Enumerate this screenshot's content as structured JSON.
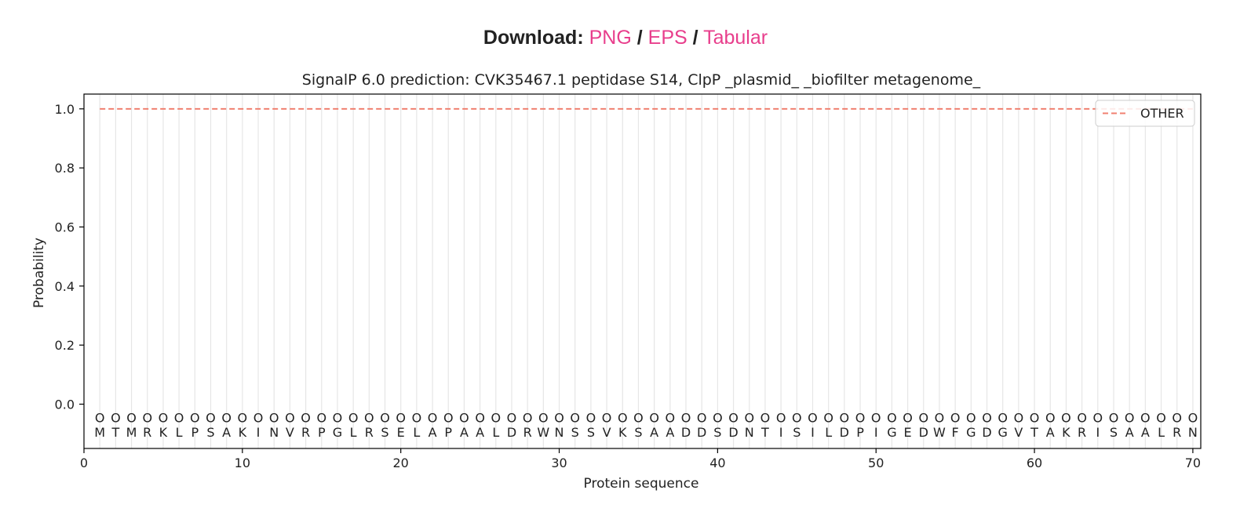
{
  "download": {
    "label": "Download:",
    "separator": "/",
    "links": [
      "PNG",
      "EPS",
      "Tabular"
    ]
  },
  "colors": {
    "link": "#e83e8c",
    "other_line": "#f08070",
    "grid": "#e6e6e6",
    "marker": "#888888"
  },
  "chart_data": {
    "type": "line",
    "title": "SignalP 6.0 prediction: CVK35467.1 peptidase S14, ClpP _plasmid_ _biofilter metagenome_",
    "xlabel": "Protein sequence",
    "ylabel": "Probability",
    "xlim": [
      0,
      70.5
    ],
    "ylim": [
      -0.15,
      1.05
    ],
    "xticks": [
      0,
      10,
      20,
      30,
      40,
      50,
      60,
      70
    ],
    "yticks": [
      0.0,
      0.2,
      0.4,
      0.6,
      0.8,
      1.0
    ],
    "ytick_labels": [
      "0.0",
      "0.2",
      "0.4",
      "0.6",
      "0.8",
      "1.0"
    ],
    "grid": "vertical at each residue",
    "legend": {
      "placement": "top-right",
      "entries": [
        "OTHER"
      ]
    },
    "series": [
      {
        "name": "OTHER",
        "style": "dashed",
        "x_start": 1,
        "x_end": 70,
        "value": 1.0
      }
    ],
    "residue_marker_y": -0.045,
    "residue_marker_label": "O",
    "sequence": [
      "M",
      "T",
      "M",
      "R",
      "K",
      "L",
      "P",
      "S",
      "A",
      "K",
      "I",
      "N",
      "V",
      "R",
      "P",
      "G",
      "L",
      "R",
      "S",
      "E",
      "L",
      "A",
      "P",
      "A",
      "A",
      "L",
      "D",
      "R",
      "W",
      "N",
      "S",
      "S",
      "V",
      "K",
      "S",
      "A",
      "A",
      "D",
      "D",
      "S",
      "D",
      "N",
      "T",
      "I",
      "S",
      "I",
      "L",
      "D",
      "P",
      "I",
      "G",
      "E",
      "D",
      "W",
      "F",
      "G",
      "D",
      "G",
      "V",
      "T",
      "A",
      "K",
      "R",
      "I",
      "S",
      "A",
      "A",
      "L",
      "R",
      "N"
    ]
  }
}
